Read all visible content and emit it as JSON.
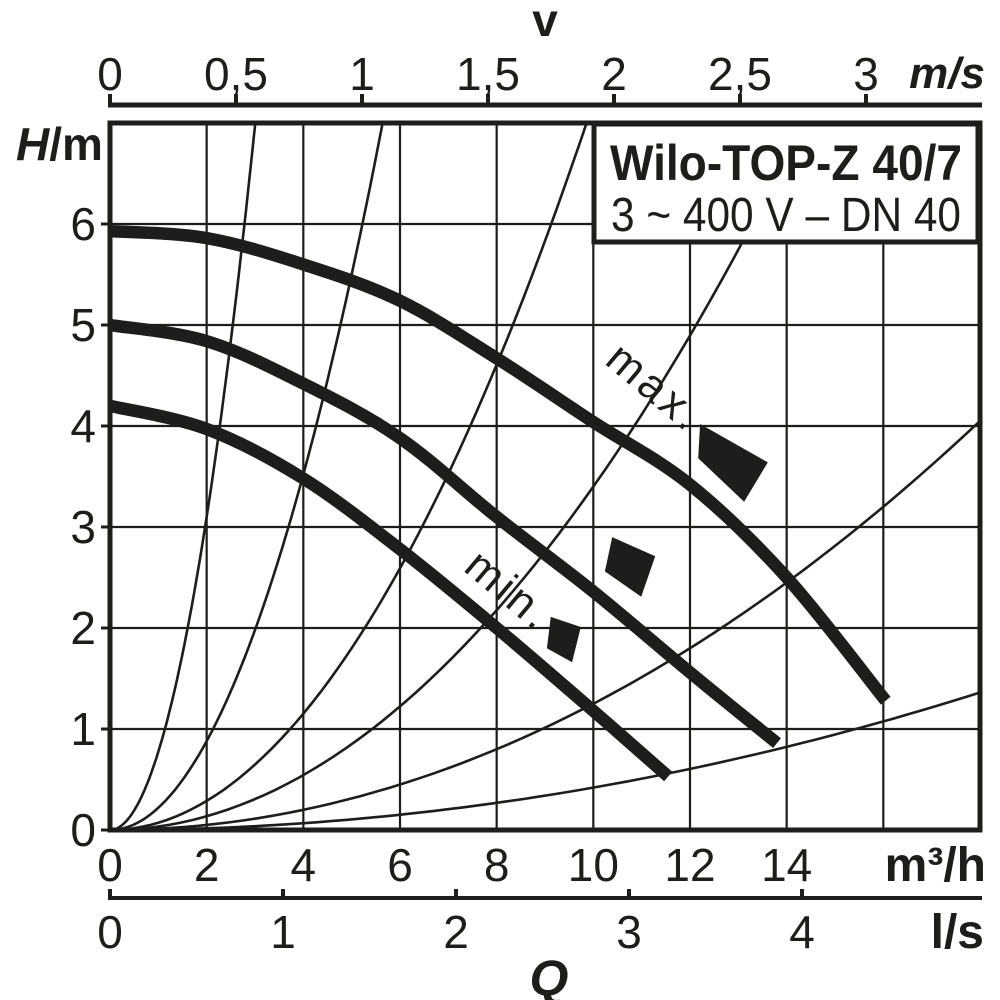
{
  "colors": {
    "ink": "#1d1d1b",
    "background": "#ffffff"
  },
  "title_box": {
    "line1": "Wilo-TOP-Z 40/7",
    "line2": "3 ~ 400 V – DN 40"
  },
  "axis_labels": {
    "head_symbol": "H",
    "head_unit": "/m",
    "velocity_symbol": "v",
    "velocity_unit": "m/s",
    "flow_unit_m3h": "m³/h",
    "flow_unit_ls": "l/s",
    "flow_symbol": "Q"
  },
  "axes": {
    "head_m": {
      "tick_labels": [
        "6",
        "5",
        "4",
        "3",
        "2",
        "1",
        "0"
      ],
      "tick_values": [
        6,
        5,
        4,
        3,
        2,
        1,
        0
      ],
      "range": [
        0,
        7
      ]
    },
    "velocity_ms": {
      "tick_labels": [
        "0",
        "0,5",
        "1",
        "1,5",
        "2",
        "2,5",
        "3"
      ],
      "tick_values": [
        0,
        0.5,
        1,
        1.5,
        2,
        2.5,
        3
      ],
      "range": [
        0,
        3.45
      ]
    },
    "flow_m3h": {
      "tick_labels": [
        "0",
        "2",
        "4",
        "6",
        "8",
        "10",
        "12",
        "14"
      ],
      "tick_values": [
        0,
        2,
        4,
        6,
        8,
        10,
        12,
        14
      ],
      "range": [
        0,
        18
      ]
    },
    "flow_ls": {
      "tick_labels": [
        "0",
        "1",
        "2",
        "3",
        "4"
      ],
      "tick_values": [
        0,
        1,
        2,
        3,
        4
      ],
      "range": [
        0,
        5.03
      ]
    }
  },
  "chart_data": {
    "type": "line",
    "title": "Wilo-TOP-Z 40/7",
    "subtitle": "3 ~ 400 V – DN 40",
    "ylabel": "H/m",
    "xlabel": "Q",
    "x_units": [
      "m³/h",
      "l/s"
    ],
    "x2label": "v",
    "x2_unit": "m/s",
    "xlim_m3h": [
      0,
      18
    ],
    "ylim_m": [
      0,
      7
    ],
    "grid": true,
    "grid_step_x_m3h": 2,
    "grid_step_y_m": 1,
    "series": [
      {
        "name": "max",
        "label": "max.",
        "points_q_h": [
          [
            0,
            5.93
          ],
          [
            2,
            5.86
          ],
          [
            4,
            5.6
          ],
          [
            6,
            5.24
          ],
          [
            8,
            4.67
          ],
          [
            10,
            4.04
          ],
          [
            12,
            3.42
          ],
          [
            14,
            2.5
          ],
          [
            16.05,
            1.28
          ]
        ]
      },
      {
        "name": "mid",
        "label": "",
        "points_q_h": [
          [
            0,
            5.0
          ],
          [
            2,
            4.84
          ],
          [
            4,
            4.42
          ],
          [
            6,
            3.88
          ],
          [
            8,
            3.1
          ],
          [
            10,
            2.36
          ],
          [
            12,
            1.56
          ],
          [
            13.8,
            0.86
          ]
        ]
      },
      {
        "name": "min",
        "label": "min.",
        "points_q_h": [
          [
            0,
            4.2
          ],
          [
            2,
            3.97
          ],
          [
            4,
            3.48
          ],
          [
            6,
            2.78
          ],
          [
            8,
            2.0
          ],
          [
            10,
            1.18
          ],
          [
            11.55,
            0.53
          ]
        ]
      }
    ],
    "system_curves": {
      "formula": "H = c · Q²",
      "coefficients": [
        0.775,
        0.22,
        0.072,
        0.034,
        0.0125,
        0.0042
      ]
    },
    "annotations": [
      {
        "text": "max.",
        "q": 11.09,
        "h": 4.27,
        "rotation_deg": 40
      },
      {
        "text": "min.",
        "q": 8.07,
        "h": 2.26,
        "rotation_deg": 40
      }
    ],
    "setting_markers": [
      {
        "name": "max-setting-marker",
        "polygon_q_h": [
          [
            12.21,
            4.02
          ],
          [
            13.61,
            3.64
          ],
          [
            13.12,
            3.25
          ],
          [
            12.17,
            3.68
          ]
        ]
      },
      {
        "name": "mid-setting-marker",
        "polygon_q_h": [
          [
            10.39,
            2.9
          ],
          [
            11.28,
            2.71
          ],
          [
            10.99,
            2.31
          ],
          [
            10.24,
            2.56
          ]
        ]
      },
      {
        "name": "min-setting-marker",
        "polygon_q_h": [
          [
            9.12,
            2.11
          ],
          [
            9.74,
            2.01
          ],
          [
            9.56,
            1.66
          ],
          [
            9.04,
            1.8
          ]
        ]
      }
    ]
  }
}
